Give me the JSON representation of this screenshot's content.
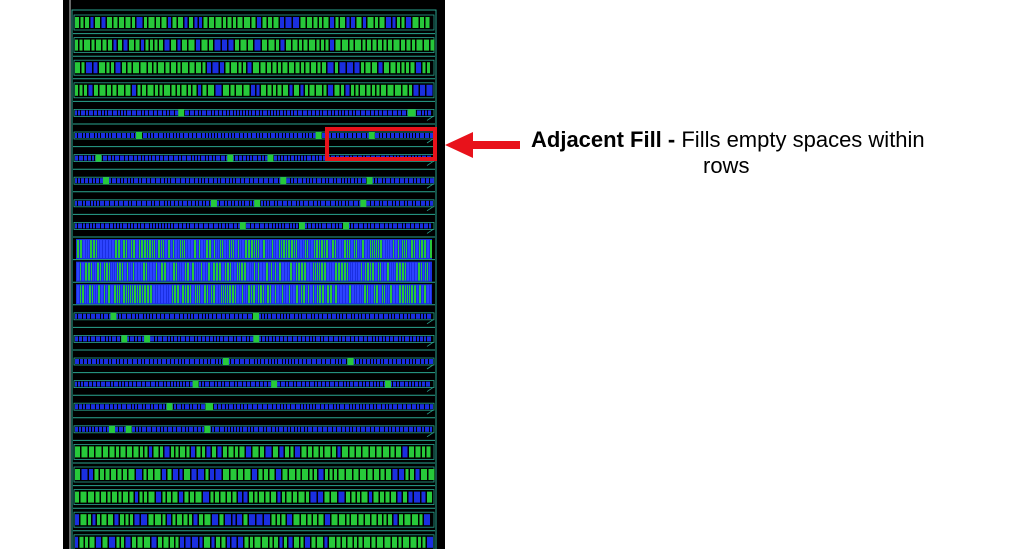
{
  "annotation": {
    "title": "Adjacent Fill -",
    "desc_line1": " Fills empty spaces within",
    "desc_line2": "rows"
  },
  "colors": {
    "background": "#000000",
    "row_outline": "#2aa58f",
    "cell_blue": "#1a2fe0",
    "cell_green": "#27c93a",
    "callout": "#e8121b"
  },
  "rows": [
    {
      "style": "cells"
    },
    {
      "style": "cells"
    },
    {
      "style": "cells"
    },
    {
      "style": "cells"
    },
    {
      "style": "thin"
    },
    {
      "style": "thin"
    },
    {
      "style": "thin"
    },
    {
      "style": "thin"
    },
    {
      "style": "thin"
    },
    {
      "style": "thin"
    },
    {
      "style": "dense"
    },
    {
      "style": "dense"
    },
    {
      "style": "dense"
    },
    {
      "style": "thin"
    },
    {
      "style": "thin"
    },
    {
      "style": "thin"
    },
    {
      "style": "thin"
    },
    {
      "style": "thin"
    },
    {
      "style": "thin"
    },
    {
      "style": "cells"
    },
    {
      "style": "cells"
    },
    {
      "style": "cells"
    },
    {
      "style": "cells"
    },
    {
      "style": "cells"
    }
  ]
}
